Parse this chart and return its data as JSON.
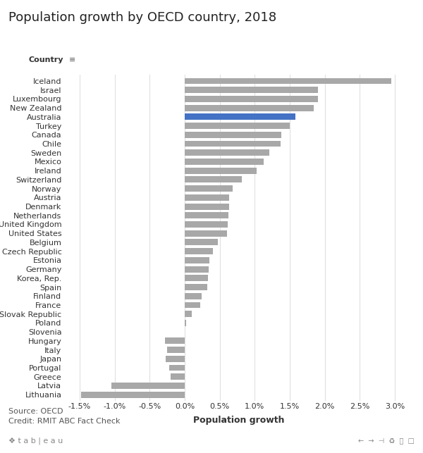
{
  "title": "Population growth by OECD country, 2018",
  "xlabel": "Population growth",
  "country_header": "Country",
  "source_line1": "Source: OECD",
  "source_line2": "Credit: RMIT ABC Fact Check",
  "countries": [
    "Lithuania",
    "Latvia",
    "Greece",
    "Portugal",
    "Japan",
    "Italy",
    "Hungary",
    "Slovenia",
    "Poland",
    "Slovak Republic",
    "France",
    "Finland",
    "Spain",
    "Korea, Rep.",
    "Germany",
    "Estonia",
    "Czech Republic",
    "Belgium",
    "United States",
    "United Kingdom",
    "Netherlands",
    "Denmark",
    "Austria",
    "Norway",
    "Switzerland",
    "Ireland",
    "Mexico",
    "Sweden",
    "Chile",
    "Canada",
    "Turkey",
    "Australia",
    "New Zealand",
    "Luxembourg",
    "Israel",
    "Iceland"
  ],
  "values": [
    -1.48,
    -1.05,
    -0.2,
    -0.22,
    -0.27,
    -0.25,
    -0.28,
    0.0,
    0.02,
    0.1,
    0.22,
    0.24,
    0.32,
    0.33,
    0.34,
    0.35,
    0.4,
    0.47,
    0.6,
    0.61,
    0.62,
    0.63,
    0.63,
    0.68,
    0.82,
    1.03,
    1.13,
    1.21,
    1.37,
    1.38,
    1.5,
    1.58,
    1.84,
    1.9,
    1.9,
    2.95
  ],
  "highlight_country": "Australia",
  "highlight_color": "#4472C4",
  "default_color": "#A8A8A8",
  "background_color": "#FFFFFF",
  "xlim_low": -1.7,
  "xlim_high": 3.25,
  "xtick_values": [
    -1.5,
    -1.0,
    -0.5,
    0.0,
    0.5,
    1.0,
    1.5,
    2.0,
    2.5,
    3.0
  ],
  "xtick_labels": [
    "-1.5%",
    "-1.0%",
    "-0.5%",
    "0.0%",
    "0.5%",
    "1.0%",
    "1.5%",
    "2.0%",
    "2.5%",
    "3.0%"
  ],
  "title_fontsize": 13,
  "axis_label_fontsize": 9,
  "tick_fontsize": 8,
  "source_fontsize": 8,
  "country_header_fontsize": 8
}
